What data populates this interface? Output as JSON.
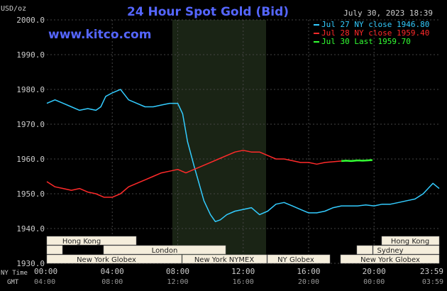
{
  "header": {
    "title": "24 Hour Spot Gold (Bid)",
    "date": "July 30, 2023 18:39",
    "unit": "USD/oz",
    "brand": "www.kitco.com"
  },
  "legend": [
    {
      "label": "Jul 27 NY close 1946.80",
      "color": "#33ccff"
    },
    {
      "label": "Jul 28 NY close 1959.40",
      "color": "#ff2a2a"
    },
    {
      "label": "Jul 30 Last 1959.70",
      "color": "#33ff33"
    }
  ],
  "axis": {
    "y_ticks": [
      "2000.0",
      "1990.0",
      "1980.0",
      "1970.0",
      "1960.0",
      "1950.0",
      "1940.0",
      "1930.0"
    ],
    "x_ny_ticks": [
      "00:00",
      "04:00",
      "08:00",
      "12:00",
      "16:00",
      "20:00",
      "23:59"
    ],
    "x_gmt_ticks": [
      "04:00",
      "08:00",
      "12:00",
      "16:00",
      "20:00",
      "00:00",
      "03:59"
    ],
    "ny_time_label": "NY Time",
    "gmt_label": "GMT"
  },
  "sessions": {
    "hong_kong_left": "Hong Kong",
    "london": "London",
    "new_york_globex_left": "New York Globex",
    "new_york_nymex": "New York NYMEX",
    "ny_globex": "NY Globex",
    "hong_kong_right": "Hong Kong",
    "sydney": "Sydney",
    "new_york_globex_right": "New York Globex"
  },
  "chart_data": {
    "type": "line",
    "ylabel": "USD/oz",
    "ylim": [
      1930,
      2000
    ],
    "x_unit": "hours (NY time)",
    "xlim": [
      0,
      23.98
    ],
    "highlight_range": [
      7.67,
      13.4
    ],
    "series": [
      {
        "name": "Jul 27 NY close 1946.80",
        "color": "#33ccff",
        "x": [
          0,
          0.5,
          1,
          1.5,
          2,
          2.5,
          3,
          3.3,
          3.6,
          4,
          4.5,
          5,
          5.5,
          6,
          6.5,
          7,
          7.5,
          8,
          8.3,
          8.6,
          9,
          9.3,
          9.6,
          10,
          10.3,
          10.6,
          11,
          11.5,
          12,
          12.5,
          13,
          13.5,
          14,
          14.5,
          15,
          15.5,
          16,
          16.5,
          17,
          17.5,
          18,
          18.5,
          19,
          19.5,
          20,
          20.5,
          21,
          21.5,
          22,
          22.5,
          23,
          23.3,
          23.6,
          23.98
        ],
        "y": [
          1976,
          1977,
          1976,
          1975,
          1974,
          1974.5,
          1974,
          1975,
          1978,
          1979,
          1980,
          1977,
          1976,
          1975,
          1975,
          1975.5,
          1976,
          1976,
          1973,
          1965,
          1958,
          1953,
          1948,
          1944,
          1942,
          1942.5,
          1944,
          1945,
          1945.5,
          1946,
          1944,
          1945,
          1947,
          1947.5,
          1946.5,
          1945.5,
          1944.5,
          1944.5,
          1945,
          1946,
          1946.5,
          1946.5,
          1946.5,
          1946.8,
          1946.5,
          1947,
          1947,
          1947.5,
          1948,
          1948.5,
          1950,
          1951.5,
          1953,
          1951.5
        ]
      },
      {
        "name": "Jul 28 NY close 1959.40",
        "color": "#ff2a2a",
        "x": [
          0,
          0.5,
          1,
          1.5,
          2,
          2.5,
          3,
          3.5,
          4,
          4.5,
          5,
          5.5,
          6,
          6.5,
          7,
          7.5,
          8,
          8.5,
          9,
          9.5,
          10,
          10.5,
          11,
          11.5,
          12,
          12.5,
          13,
          13.5,
          14,
          14.5,
          15,
          15.5,
          16,
          16.5,
          17,
          17.5,
          18
        ],
        "y": [
          1953.5,
          1952,
          1951.5,
          1951,
          1951.5,
          1950.5,
          1950,
          1949,
          1949,
          1950,
          1952,
          1953,
          1954,
          1955,
          1956,
          1956.5,
          1957,
          1956,
          1957,
          1958,
          1959,
          1960,
          1961,
          1962,
          1962.5,
          1962,
          1962,
          1961,
          1960,
          1960,
          1959.5,
          1959,
          1959,
          1958.5,
          1959,
          1959.2,
          1959.4
        ]
      },
      {
        "name": "Jul 30 Last 1959.70",
        "color": "#33ff33",
        "x": [
          18,
          18.3,
          18.6,
          19,
          19.3,
          19.6,
          19.9
        ],
        "y": [
          1959.4,
          1959.5,
          1959.4,
          1959.6,
          1959.5,
          1959.6,
          1959.7
        ]
      }
    ]
  },
  "colors": {
    "background": "#000000",
    "plot_background": "#000000",
    "highlight": "#1a2415",
    "grid": "#444444",
    "text": "#cccccc",
    "title": "#5566ff",
    "session_fill": "#f5eedc",
    "session_text": "#222222"
  }
}
